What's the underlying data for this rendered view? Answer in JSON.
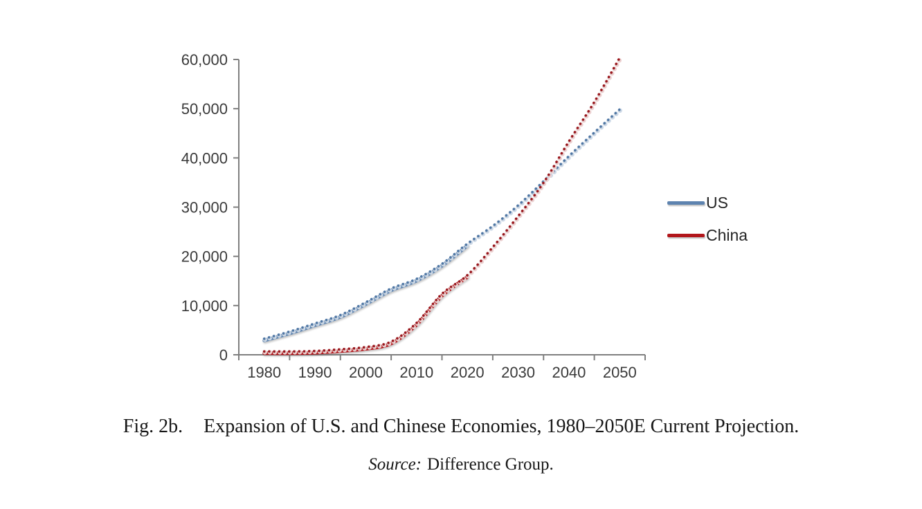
{
  "figure": {
    "caption": {
      "label": "Fig. 2b.",
      "text": "Expansion of U.S. and Chinese Economies, 1980–2050E Current Projection."
    },
    "source": {
      "label": "Source:",
      "text": "Difference Group."
    }
  },
  "chart_data": {
    "type": "line",
    "title": "",
    "xlabel": "",
    "ylabel": "",
    "x_ticks": [
      1980,
      1990,
      2000,
      2010,
      2020,
      2030,
      2040,
      2050
    ],
    "x_tick_labels": [
      "1980",
      "1990",
      "2000",
      "2010",
      "2020",
      "2030",
      "2040",
      "2050"
    ],
    "y_ticks": [
      0,
      10000,
      20000,
      30000,
      40000,
      50000,
      60000
    ],
    "y_tick_labels": [
      "0",
      "10,000",
      "20,000",
      "30,000",
      "40,000",
      "50,000",
      "60,000"
    ],
    "ylim": [
      0,
      60000
    ],
    "x_range": [
      1980,
      2050
    ],
    "grid": false,
    "legend_position": "right",
    "axis_color": "#7f7f7f",
    "label_color": "#3a3a3a",
    "legend": [
      {
        "label": "US",
        "color": "#5d83af"
      },
      {
        "label": "China",
        "color": "#b2161b"
      }
    ],
    "series": [
      {
        "id": "us-actual",
        "name": "US (historical, solid line)",
        "style": "solid",
        "color": "#5d83af",
        "x": [
          1980,
          1985,
          1990,
          1995,
          2000,
          2005,
          2010,
          2015,
          2020
        ],
        "values": [
          2900,
          4350,
          6000,
          7700,
          10300,
          13100,
          15050,
          18100,
          22200
        ]
      },
      {
        "id": "china-actual",
        "name": "China (historical, solid line)",
        "style": "solid",
        "color": "#b2161b",
        "x": [
          1980,
          1985,
          1990,
          1995,
          2000,
          2005,
          2010,
          2015,
          2020
        ],
        "values": [
          320,
          310,
          400,
          740,
          1200,
          2300,
          6100,
          12000,
          15800
        ]
      },
      {
        "id": "us-projection",
        "name": "US (projection, dotted line)",
        "style": "dotted",
        "color": "#4e76a4",
        "halo": "#cfdbe9",
        "x": [
          1980,
          1985,
          1990,
          1995,
          2000,
          2005,
          2010,
          2015,
          2020,
          2025,
          2030,
          2035,
          2040,
          2045,
          2050
        ],
        "values": [
          2900,
          4350,
          6000,
          7700,
          10300,
          13100,
          15050,
          18100,
          22200,
          25800,
          30000,
          34900,
          40000,
          44800,
          49500
        ]
      },
      {
        "id": "china-projection",
        "name": "China (projection, dotted line)",
        "style": "dotted",
        "color": "#99151b",
        "halo": "#eed3d3",
        "x": [
          1980,
          1985,
          1990,
          1995,
          2000,
          2005,
          2010,
          2015,
          2020,
          2025,
          2030,
          2035,
          2040,
          2045,
          2050
        ],
        "values": [
          320,
          310,
          400,
          740,
          1200,
          2300,
          6100,
          12000,
          15800,
          21500,
          27800,
          34600,
          43000,
          51000,
          60000
        ]
      }
    ]
  }
}
